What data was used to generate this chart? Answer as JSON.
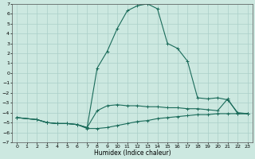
{
  "xlabel": "Humidex (Indice chaleur)",
  "bg_color": "#cce8e0",
  "grid_color": "#aacfc8",
  "line_color": "#1a6b5a",
  "xlim": [
    -0.5,
    23.5
  ],
  "ylim": [
    -7,
    7
  ],
  "xticks": [
    0,
    1,
    2,
    3,
    4,
    5,
    6,
    7,
    8,
    9,
    10,
    11,
    12,
    13,
    14,
    15,
    16,
    17,
    18,
    19,
    20,
    21,
    22,
    23
  ],
  "yticks": [
    -7,
    -6,
    -5,
    -4,
    -3,
    -2,
    -1,
    0,
    1,
    2,
    3,
    4,
    5,
    6,
    7
  ],
  "line1_x": [
    0,
    2,
    3,
    4,
    5,
    6,
    7,
    8,
    9,
    10,
    11,
    12,
    13,
    14,
    15,
    16,
    17,
    18,
    19,
    20,
    21,
    22,
    23
  ],
  "line1_y": [
    -4.5,
    -4.7,
    -5.0,
    -5.1,
    -5.1,
    -5.2,
    -5.6,
    -5.6,
    -5.5,
    -5.3,
    -5.1,
    -4.9,
    -4.8,
    -4.6,
    -4.5,
    -4.4,
    -4.3,
    -4.2,
    -4.2,
    -4.1,
    -4.1,
    -4.1,
    -4.1
  ],
  "line2_x": [
    0,
    2,
    3,
    4,
    5,
    6,
    7,
    8,
    9,
    10,
    11,
    12,
    13,
    14,
    15,
    16,
    17,
    18,
    19,
    20,
    21,
    22,
    23
  ],
  "line2_y": [
    -4.5,
    -4.7,
    -5.0,
    -5.1,
    -5.1,
    -5.2,
    -5.5,
    -3.8,
    -3.3,
    -3.2,
    -3.3,
    -3.3,
    -3.4,
    -3.4,
    -3.5,
    -3.5,
    -3.6,
    -3.6,
    -3.7,
    -3.8,
    -2.6,
    -4.1,
    -4.1
  ],
  "line3_x": [
    0,
    2,
    3,
    4,
    5,
    6,
    7,
    8,
    9,
    10,
    11,
    12,
    13,
    14,
    15,
    16,
    17,
    18,
    19,
    20,
    21,
    22,
    23
  ],
  "line3_y": [
    -4.5,
    -4.7,
    -5.0,
    -5.1,
    -5.1,
    -5.2,
    -5.5,
    0.5,
    2.2,
    4.5,
    6.3,
    6.8,
    7.0,
    6.5,
    3.0,
    2.5,
    1.2,
    -2.5,
    -2.6,
    -2.5,
    -2.7,
    -4.0,
    -4.1
  ]
}
